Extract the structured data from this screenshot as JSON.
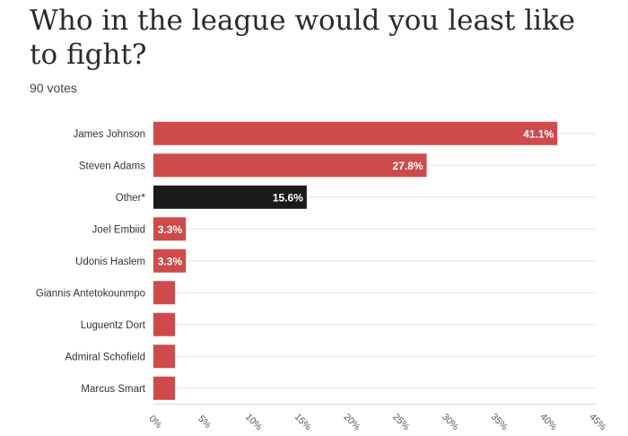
{
  "chart_data": {
    "type": "bar",
    "orientation": "horizontal",
    "title": "Who in the league would you least like to fight?",
    "subtitle": "90 votes",
    "categories": [
      "James Johnson",
      "Steven Adams",
      "Other*",
      "Joel Embiid",
      "Udonis Haslem",
      "Giannis Antetokounmpo",
      "Luguentz Dort",
      "Admiral Schofield",
      "Marcus Smart"
    ],
    "values": [
      41.1,
      27.8,
      15.6,
      3.3,
      3.3,
      2.2,
      2.2,
      2.2,
      2.2
    ],
    "value_labels": [
      "41.1%",
      "27.8%",
      "15.6%",
      "3.3%",
      "3.3%",
      "",
      "",
      "",
      ""
    ],
    "bar_colors": [
      "#cf4a4a",
      "#cf4a4a",
      "#1a1a1a",
      "#cf4a4a",
      "#cf4a4a",
      "#cf4a4a",
      "#cf4a4a",
      "#cf4a4a",
      "#cf4a4a"
    ],
    "xlim": [
      0,
      45
    ],
    "xticks": [
      0,
      5,
      10,
      15,
      20,
      25,
      30,
      35,
      40,
      45
    ],
    "xtick_labels": [
      "0%",
      "5%",
      "10%",
      "15%",
      "20%",
      "25%",
      "30%",
      "35%",
      "40%",
      "45%"
    ],
    "grid": true
  }
}
